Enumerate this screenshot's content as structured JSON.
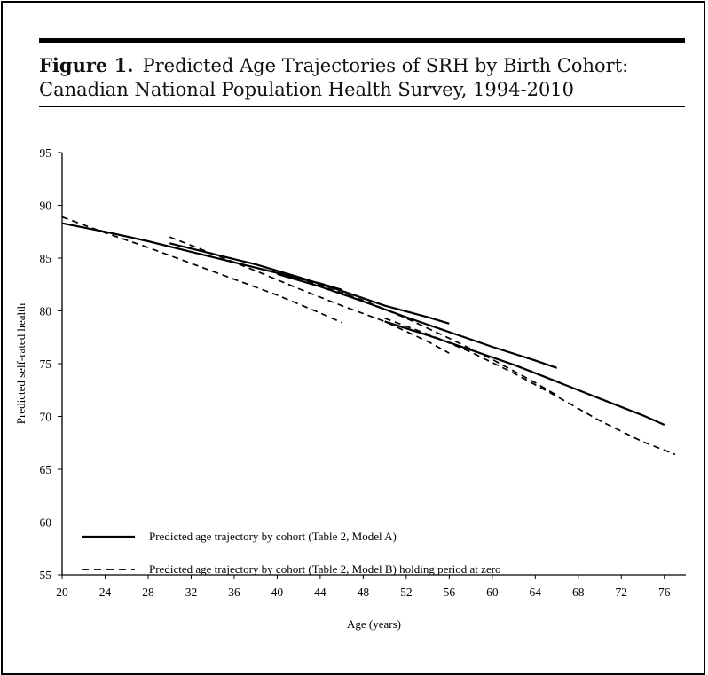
{
  "figure": {
    "label": "Figure 1.",
    "title": "Predicted Age Trajectories of SRH by Birth Cohort: Canadian National Population Health Survey, 1994-2010"
  },
  "chart_data": {
    "type": "line",
    "xlabel": "Age (years)",
    "ylabel": "Predicted self-rated health",
    "xlim": [
      20,
      78
    ],
    "ylim": [
      55,
      95
    ],
    "x_ticks": [
      20,
      24,
      28,
      32,
      36,
      40,
      44,
      48,
      52,
      56,
      60,
      64,
      68,
      72,
      76
    ],
    "y_ticks": [
      55,
      60,
      65,
      70,
      75,
      80,
      85,
      90,
      95
    ],
    "grid": false,
    "legend_position": "bottom-left",
    "legend": [
      {
        "label": "Predicted age trajectory by cohort (Table 2, Model A)",
        "style": "solid"
      },
      {
        "label": "Predicted age trajectory by cohort (Table 2, Model B) holding period at zero",
        "style": "dashed"
      }
    ],
    "series": [
      {
        "model": "A",
        "style": "solid",
        "x": [
          20,
          24,
          28,
          32,
          36,
          40,
          44,
          46
        ],
        "y": [
          88.3,
          87.5,
          86.6,
          85.6,
          84.6,
          83.6,
          82.6,
          82.0
        ]
      },
      {
        "model": "A",
        "style": "solid",
        "x": [
          30,
          34,
          38,
          42,
          46,
          50,
          54,
          56
        ],
        "y": [
          86.4,
          85.4,
          84.4,
          83.2,
          81.9,
          80.5,
          79.4,
          78.8
        ]
      },
      {
        "model": "A",
        "style": "solid",
        "x": [
          40,
          44,
          48,
          52,
          56,
          60,
          64,
          66
        ],
        "y": [
          83.5,
          82.3,
          80.9,
          79.4,
          78.0,
          76.6,
          75.3,
          74.6
        ]
      },
      {
        "model": "A",
        "style": "solid",
        "x": [
          50,
          54,
          58,
          62,
          66,
          70,
          74,
          76
        ],
        "y": [
          79.0,
          77.7,
          76.3,
          74.9,
          73.3,
          71.7,
          70.1,
          69.2
        ]
      },
      {
        "model": "B",
        "style": "dashed",
        "x": [
          20,
          24,
          28,
          32,
          36,
          40,
          44,
          46
        ],
        "y": [
          88.9,
          87.4,
          86.0,
          84.5,
          83.0,
          81.5,
          79.8,
          78.9
        ]
      },
      {
        "model": "B",
        "style": "dashed",
        "x": [
          30,
          34,
          38,
          42,
          46,
          50,
          54,
          56
        ],
        "y": [
          87.0,
          85.4,
          83.8,
          82.1,
          80.5,
          79.0,
          77.1,
          76.0
        ]
      },
      {
        "model": "B",
        "style": "dashed",
        "x": [
          40,
          44,
          48,
          52,
          56,
          60,
          64,
          66
        ],
        "y": [
          83.8,
          82.4,
          81.0,
          79.3,
          77.4,
          75.4,
          73.2,
          72.0
        ]
      },
      {
        "model": "B",
        "style": "dashed",
        "x": [
          50,
          54,
          58,
          62,
          66,
          70,
          74,
          77
        ],
        "y": [
          79.3,
          77.8,
          76.1,
          74.1,
          71.9,
          69.6,
          67.6,
          66.4
        ]
      }
    ]
  }
}
